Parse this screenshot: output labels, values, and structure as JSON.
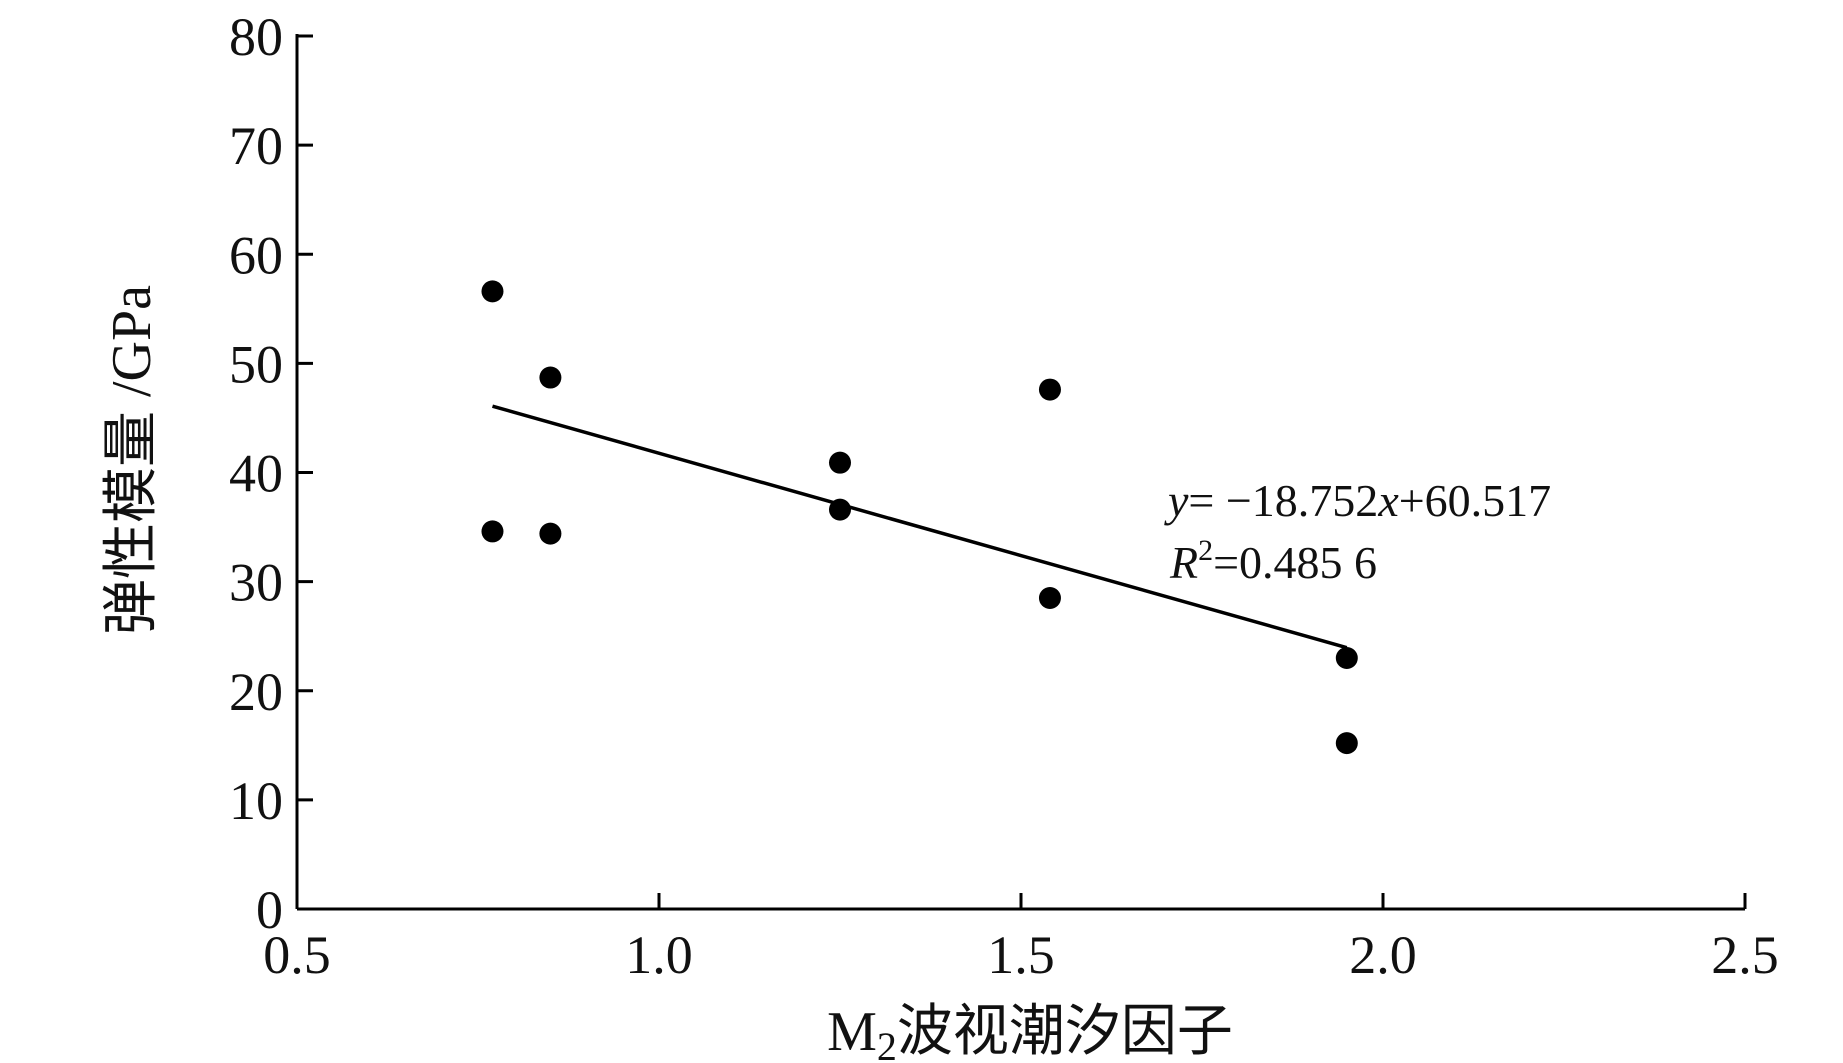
{
  "chart_data": {
    "type": "scatter",
    "xlabel": "M₂波视潮汐因子",
    "xlabel_parts": {
      "main": "M",
      "sub": "2",
      "rest": "波视潮汐因子"
    },
    "ylabel": "弹性模量 /GPa",
    "xlim": [
      0.5,
      2.5
    ],
    "ylim": [
      0,
      80
    ],
    "x_ticks": [
      "0.5",
      "1.0",
      "1.5",
      "2.0",
      "2.5"
    ],
    "y_ticks": [
      "0",
      "10",
      "20",
      "30",
      "40",
      "50",
      "60",
      "70",
      "80"
    ],
    "grid": false,
    "legend": "none",
    "series": [
      {
        "points": [
          {
            "x": 0.77,
            "y": 56.6
          },
          {
            "x": 0.77,
            "y": 34.6
          },
          {
            "x": 0.85,
            "y": 48.7
          },
          {
            "x": 0.85,
            "y": 34.4
          },
          {
            "x": 1.25,
            "y": 40.9
          },
          {
            "x": 1.25,
            "y": 36.6
          },
          {
            "x": 1.54,
            "y": 47.6
          },
          {
            "x": 1.54,
            "y": 28.5
          },
          {
            "x": 1.95,
            "y": 23.0
          },
          {
            "x": 1.95,
            "y": 15.2
          }
        ]
      }
    ],
    "trendline": {
      "slope": -18.752,
      "intercept": 60.517,
      "x_range": [
        0.77,
        1.95
      ],
      "equation_text": {
        "y": "y",
        "eq": "= −18.752",
        "x": "x",
        "rest": "+60.517"
      },
      "r2_text": {
        "R": "R",
        "sup": "2",
        "rest": "=0.485 6"
      }
    },
    "colors": {
      "marker": "#000000",
      "line": "#000000",
      "axis": "#000000"
    }
  }
}
